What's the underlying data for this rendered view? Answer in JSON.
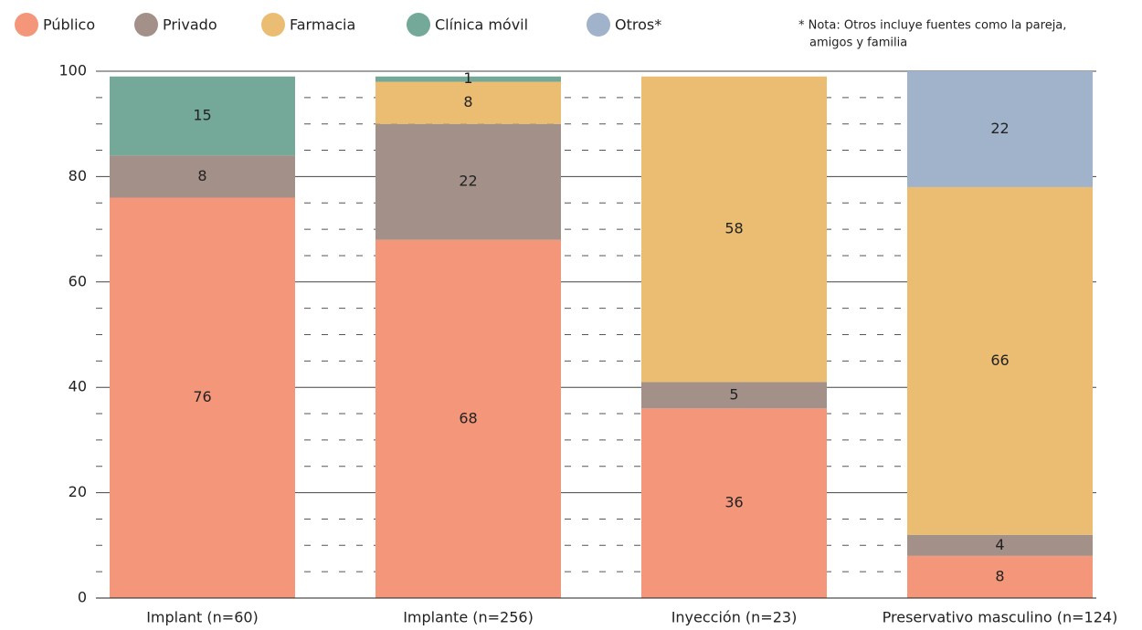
{
  "chart_data": {
    "type": "stacked_bar",
    "categories": [
      "Implant (n=60)",
      "Implante (n=256)",
      "Inyección (n=23)",
      "Preservativo masculino (n=124)"
    ],
    "series": [
      {
        "name": "Público",
        "color": "#f4967a",
        "values": [
          76,
          68,
          36,
          8
        ]
      },
      {
        "name": "Privado",
        "color": "#a39089",
        "values": [
          8,
          22,
          5,
          4
        ]
      },
      {
        "name": "Farmacia",
        "color": "#ebbd72",
        "values": [
          null,
          8,
          58,
          66
        ]
      },
      {
        "name": "Clínica móvil",
        "color": "#74a898",
        "values": [
          15,
          1,
          null,
          null
        ]
      },
      {
        "name": "Otros*",
        "color": "#a0b3cb",
        "values": [
          null,
          null,
          null,
          22
        ]
      }
    ],
    "note": [
      "* Nota: Otros incluye fuentes como la pareja,",
      "amigos y familia"
    ],
    "ylim": [
      0,
      100
    ],
    "yticks": [
      0,
      20,
      40,
      60,
      80,
      100
    ],
    "grid": true
  }
}
